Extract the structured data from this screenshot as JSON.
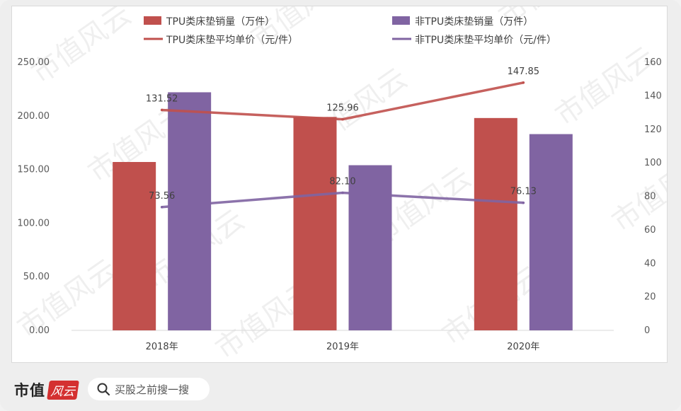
{
  "chart_data": {
    "type": "bar",
    "categories": [
      "2018年",
      "2019年",
      "2020年"
    ],
    "series": [
      {
        "name": "TPU类床垫销量（万件）",
        "kind": "bar",
        "axis": "left",
        "color": "#c0504d",
        "values": [
          157,
          199,
          198
        ]
      },
      {
        "name": "非TPU类床垫销量（万件）",
        "kind": "bar",
        "axis": "left",
        "color": "#8064a2",
        "values": [
          222,
          154,
          183
        ]
      },
      {
        "name": "TPU类床垫平均单价（元/件）",
        "kind": "line",
        "axis": "right",
        "color": "#c0504d",
        "values": [
          131.52,
          125.96,
          147.85
        ],
        "labels": [
          "131.52",
          "125.96",
          "147.85"
        ]
      },
      {
        "name": "非TPU类床垫平均单价（元/件）",
        "kind": "line",
        "axis": "right",
        "color": "#8064a2",
        "values": [
          73.56,
          82.1,
          76.13
        ],
        "labels": [
          "73.56",
          "82.10",
          "76.13"
        ]
      }
    ],
    "y_left": {
      "lim": [
        0,
        250
      ],
      "ticks": [
        "0.00",
        "50.00",
        "100.00",
        "150.00",
        "200.00",
        "250.00"
      ]
    },
    "y_right": {
      "lim": [
        0,
        160
      ],
      "ticks": [
        "0",
        "20",
        "40",
        "60",
        "80",
        "100",
        "120",
        "140",
        "160"
      ]
    },
    "legend_position": "top",
    "grid": false
  },
  "watermark": "市值风云",
  "footer": {
    "brand": "市值",
    "brand_badge": "风云",
    "search_placeholder": "买股之前搜一搜"
  }
}
